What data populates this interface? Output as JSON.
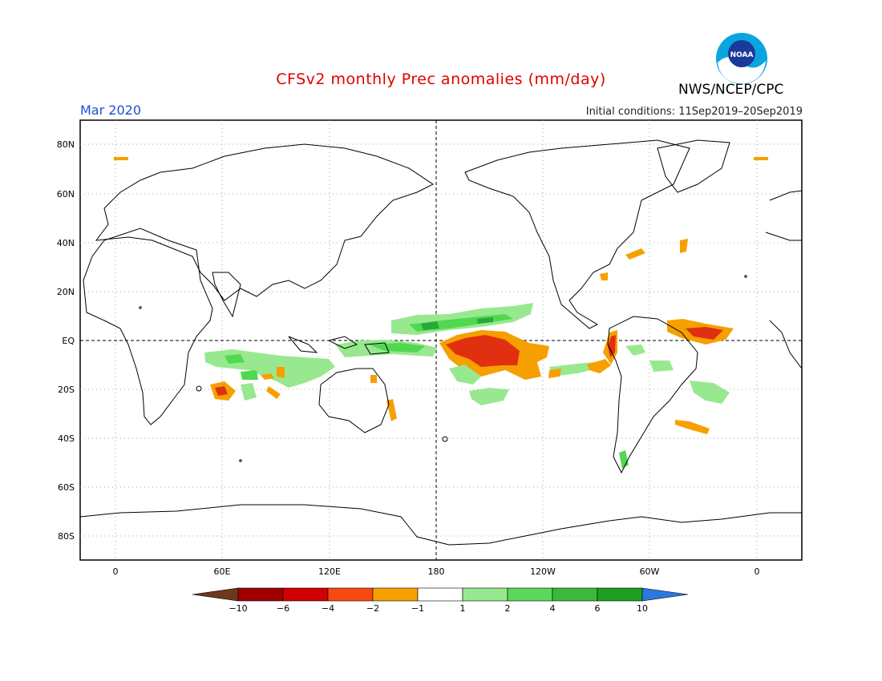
{
  "title": "CFSv2 monthly Prec anomalies (mm/day)",
  "month": "Mar 2020",
  "initial_conditions": "Initial conditions: 11Sep2019–20Sep2019",
  "agency": "NWS/NCEP/CPC",
  "logo_text": "NOAA",
  "colors": {
    "title": "#e00000",
    "month": "#1a4fd6",
    "coast": "#000000",
    "dry_strong": "#e03010",
    "dry_moderate": "#f5a000",
    "wet_light": "#98e890",
    "wet_moderate": "#50d850",
    "wet_strong": "#26a83a"
  },
  "map": {
    "lat_labels": [
      "80N",
      "60N",
      "40N",
      "20N",
      "EQ",
      "20S",
      "40S",
      "60S",
      "80S"
    ],
    "lat_values": [
      80,
      60,
      40,
      20,
      0,
      -20,
      -40,
      -60,
      -80
    ],
    "lon_labels": [
      "0",
      "60E",
      "120E",
      "180",
      "120W",
      "60W",
      "0"
    ],
    "lon_values": [
      0,
      60,
      120,
      180,
      240,
      300,
      360
    ]
  },
  "colorbar": {
    "bins": [
      "#6b3a1c",
      "#a00000",
      "#d00000",
      "#f84a10",
      "#f8a000",
      "#ffffff",
      "#98e890",
      "#5ad85a",
      "#3cb83c",
      "#1e9e1e",
      "#2a78e0"
    ],
    "labels": [
      "−10",
      "−6",
      "−4",
      "−2",
      "−1",
      "1",
      "2",
      "4",
      "6",
      "10"
    ]
  }
}
